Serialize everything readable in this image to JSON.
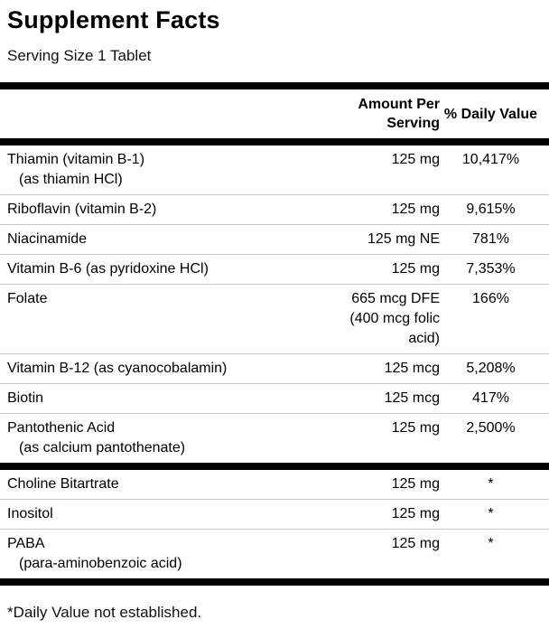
{
  "title": "Supplement Facts",
  "serving_size": "Serving Size 1 Tablet",
  "columns": {
    "amount": "Amount Per\nServing",
    "dv": "% Daily Value"
  },
  "rows": [
    {
      "name": "Thiamin (vitamin B-1)",
      "sub": "(as thiamin HCl)",
      "amount": "125 mg",
      "dv": "10,417%"
    },
    {
      "name": "Riboflavin (vitamin B-2)",
      "amount": "125 mg",
      "dv": "9,615%"
    },
    {
      "name": "Niacinamide",
      "amount": "125 mg NE",
      "dv": "781%"
    },
    {
      "name": "Vitamin B-6 (as pyridoxine HCl)",
      "amount": "125 mg",
      "dv": "7,353%"
    },
    {
      "name": "Folate",
      "amount": "665 mcg DFE\n(400 mcg folic\nacid)",
      "dv": "166%"
    },
    {
      "name": "Vitamin B-12 (as cyanocobalamin)",
      "amount": "125 mcg",
      "dv": "5,208%"
    },
    {
      "name": "Biotin",
      "amount": "125 mcg",
      "dv": "417%"
    },
    {
      "name": "Pantothenic Acid",
      "sub": "(as calcium pantothenate)",
      "amount": "125 mg",
      "dv": "2,500%"
    },
    {
      "name": "Choline Bitartrate",
      "amount": "125 mg",
      "dv": "*"
    },
    {
      "name": "Inositol",
      "amount": "125 mg",
      "dv": "*"
    },
    {
      "name": "PABA",
      "sub": "(para-aminobenzoic acid)",
      "amount": "125 mg",
      "dv": "*"
    }
  ],
  "footnote": "*Daily Value not established.",
  "colors": {
    "text": "#000000",
    "thick_rule": "#000000",
    "thin_rule": "#c9c9c9",
    "background": "#ffffff"
  }
}
